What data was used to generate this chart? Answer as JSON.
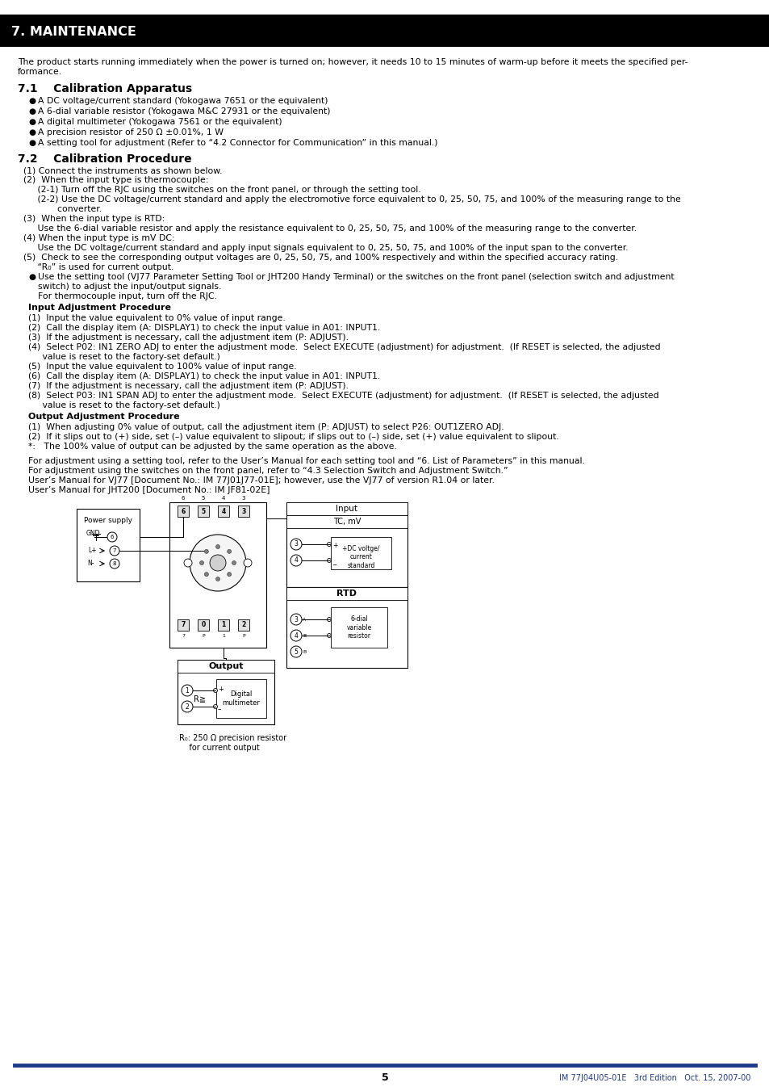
{
  "page_bg": "#ffffff",
  "header_bg": "#000000",
  "header_text": "7. MAINTENANCE",
  "header_text_color": "#ffffff",
  "footer_line_color": "#1e3a8a",
  "footer_page_num": "5",
  "footer_right": "IM 77J04U05-01E   3rd Edition   Oct. 15, 2007-00",
  "footer_text_color": "#1e3a8a",
  "body_text_color": "#000000",
  "intro_line1": "The product starts running immediately when the power is turned on; however, it needs 10 to 15 minutes of warm-up before it meets the specified per-",
  "intro_line2": "formance.",
  "sec71_title": "7.1    Calibration Apparatus",
  "sec71_bullets": [
    "A DC voltage/current standard (Yokogawa 7651 or the equivalent)",
    "A 6-dial variable resistor (Yokogawa M&C 27931 or the equivalent)",
    "A digital multimeter (Yokogawa 7561 or the equivalent)",
    "A precision resistor of 250 Ω ±0.01%, 1 W",
    "A setting tool for adjustment (Refer to “4.2 Connector for Communication” in this manual.)"
  ],
  "sec72_title": "7.2    Calibration Procedure",
  "sec72_items": [
    [
      "  (1) Connect the instruments as shown below."
    ],
    [
      "  (2)  When the input type is thermocouple:"
    ],
    [
      "       (2-1) Turn off the RJC using the switches on the front panel, or through the setting tool."
    ],
    [
      "       (2-2) Use the DC voltage/current standard and apply the electromotive force equivalent to 0, 25, 50, 75, and 100% of the measuring range to the",
      "              converter."
    ],
    [
      "  (3)  When the input type is RTD:",
      "       Use the 6-dial variable resistor and apply the resistance equivalent to 0, 25, 50, 75, and 100% of the measuring range to the converter."
    ],
    [
      "  (4) When the input type is mV DC:",
      "       Use the DC voltage/current standard and apply input signals equivalent to 0, 25, 50, 75, and 100% of the input span to the converter."
    ],
    [
      "  (5)  Check to see the corresponding output voltages are 0, 25, 50, 75, and 100% respectively and within the specified accuracy rating.",
      "       “R₀” is used for current output."
    ]
  ],
  "sec72_bullet": "  Use the setting tool (VJ77 Parameter Setting Tool or JHT200 Handy Terminal) or the switches on the front panel (selection switch and adjustment",
  "sec72_bullet_l2": "  switch) to adjust the input/output signals.",
  "sec72_bullet_l3": "  For thermocouple input, turn off the RJC.",
  "input_adj_title": "Input Adjustment Procedure",
  "input_adj_items": [
    [
      "(1)  Input the value equivalent to 0% value of input range."
    ],
    [
      "(2)  Call the display item (A: DISPLAY1) to check the input value in A01: INPUT1."
    ],
    [
      "(3)  If the adjustment is necessary, call the adjustment item (P: ADJUST)."
    ],
    [
      "(4)  Select P02: IN1 ZERO ADJ to enter the adjustment mode.  Select EXECUTE (adjustment) for adjustment.  (If RESET is selected, the adjusted",
      "     value is reset to the factory-set default.)"
    ],
    [
      "(5)  Input the value equivalent to 100% value of input range."
    ],
    [
      "(6)  Call the display item (A: DISPLAY1) to check the input value in A01: INPUT1."
    ],
    [
      "(7)  If the adjustment is necessary, call the adjustment item (P: ADJUST)."
    ],
    [
      "(8)  Select P03: IN1 SPAN ADJ to enter the adjustment mode.  Select EXECUTE (adjustment) for adjustment.  (If RESET is selected, the adjusted",
      "     value is reset to the factory-set default.)"
    ]
  ],
  "output_adj_title": "Output Adjustment Procedure",
  "output_adj_items": [
    [
      "(1)  When adjusting 0% value of output, call the adjustment item (P: ADJUST) to select P26: OUT1ZERO ADJ."
    ],
    [
      "(2)  If it slips out to (+) side, set (–) value equivalent to slipout; if slips out to (–) side, set (+) value equivalent to slipout."
    ],
    [
      "*:   The 100% value of output can be adjusted by the same operation as the above."
    ]
  ],
  "note_lines": [
    "For adjustment using a setting tool, refer to the User’s Manual for each setting tool and “6. List of Parameters” in this manual.",
    "For adjustment using the switches on the front panel, refer to “4.3 Selection Switch and Adjustment Switch.”",
    "User’s Manual for VJ77 [Document No.: IM 77J01J77-01E]; however, use the VJ77 of version R1.04 or later.",
    "User’s Manual for JHT200 [Document No.: IM JF81-02E]"
  ],
  "diagram_caption_l1": "R₀: 250 Ω precision resistor",
  "diagram_caption_l2": "    for current output"
}
